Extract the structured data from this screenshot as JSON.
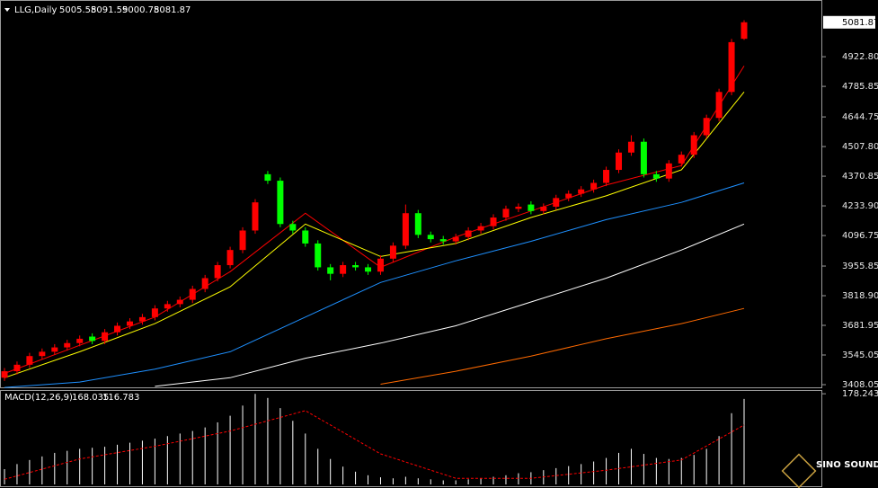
{
  "chart_data": [
    {
      "type": "candlestick",
      "title": "LLG,Daily",
      "up_color": "#ff0000",
      "down_color": "#00ff00",
      "open": [
        3440,
        3470,
        3500,
        3540,
        3560,
        3580,
        3600,
        3630,
        3610,
        3650,
        3680,
        3700,
        3720,
        3760,
        3780,
        3800,
        3850,
        3900,
        3960,
        4030,
        4120,
        4380,
        4350,
        4150,
        4120,
        4060,
        3950,
        3920,
        3960,
        3950,
        3930,
        3990,
        4050,
        4200,
        4100,
        4080,
        4070,
        4090,
        4120,
        4140,
        4180,
        4220,
        4240,
        4210,
        4230,
        4270,
        4290,
        4310,
        4340,
        4400,
        4480,
        4530,
        4380,
        4360,
        4430,
        4470,
        4560,
        4640,
        4760,
        5005.58
      ],
      "high": [
        3485,
        3515,
        3555,
        3575,
        3595,
        3615,
        3635,
        3645,
        3665,
        3695,
        3715,
        3735,
        3775,
        3795,
        3815,
        3865,
        3915,
        3975,
        4045,
        4135,
        4265,
        4395,
        4365,
        4165,
        4135,
        4075,
        3965,
        3975,
        3975,
        3965,
        4005,
        4065,
        4240,
        4215,
        4115,
        4095,
        4105,
        4135,
        4155,
        4195,
        4235,
        4245,
        4255,
        4245,
        4285,
        4305,
        4325,
        4355,
        4415,
        4495,
        4560,
        4545,
        4395,
        4445,
        4485,
        4575,
        4655,
        4775,
        5005,
        5091.59
      ],
      "low": [
        3425,
        3455,
        3485,
        3525,
        3545,
        3565,
        3585,
        3595,
        3595,
        3635,
        3665,
        3685,
        3705,
        3745,
        3765,
        3785,
        3835,
        3885,
        3945,
        4015,
        4105,
        4335,
        4135,
        4105,
        4045,
        3935,
        3890,
        3905,
        3935,
        3915,
        3915,
        3975,
        4035,
        4085,
        4065,
        4055,
        4055,
        4075,
        4105,
        4125,
        4165,
        4205,
        4195,
        4195,
        4215,
        4255,
        4275,
        4295,
        4325,
        4385,
        4465,
        4365,
        4345,
        4345,
        4415,
        4455,
        4545,
        4625,
        4745,
        5000.78
      ],
      "close": [
        3470,
        3500,
        3540,
        3560,
        3580,
        3600,
        3620,
        3610,
        3650,
        3680,
        3700,
        3720,
        3760,
        3780,
        3800,
        3850,
        3900,
        3960,
        4030,
        4120,
        4250,
        4350,
        4150,
        4120,
        4060,
        3950,
        3920,
        3960,
        3950,
        3930,
        3990,
        4050,
        4200,
        4100,
        4080,
        4070,
        4090,
        4120,
        4140,
        4180,
        4220,
        4230,
        4210,
        4230,
        4270,
        4290,
        4310,
        4340,
        4400,
        4480,
        4530,
        4380,
        4360,
        4430,
        4470,
        4560,
        4640,
        4760,
        4990,
        5081.87
      ],
      "ma_x": [
        0,
        6,
        12,
        18,
        24,
        30,
        36,
        42,
        48,
        54,
        59
      ],
      "ma_series": [
        {
          "color": "#ff0000",
          "values": [
            3460,
            3590,
            3720,
            3930,
            4200,
            3950,
            4090,
            4210,
            4330,
            4420,
            4880
          ]
        },
        {
          "color": "#ffff00",
          "values": [
            3440,
            3560,
            3690,
            3860,
            4150,
            4000,
            4060,
            4180,
            4280,
            4400,
            4760
          ]
        },
        {
          "color": "#1e90ff",
          "values": [
            3395,
            3420,
            3480,
            3560,
            3720,
            3880,
            3980,
            4070,
            4170,
            4250,
            4340
          ]
        },
        {
          "color": "#ffffff",
          "values": [
            null,
            null,
            3400,
            3440,
            3530,
            3600,
            3680,
            3790,
            3900,
            4030,
            4150
          ]
        },
        {
          "color": "#ff6a00",
          "values": [
            null,
            null,
            null,
            null,
            null,
            3410,
            3470,
            3540,
            3620,
            3690,
            3760
          ]
        }
      ],
      "ylim": [
        3391.4,
        5172.3
      ],
      "yticks": [
        3408.05,
        3545.05,
        3681.95,
        {
          "value": 3818.9,
          "label": "3818.90"
        },
        3955.85,
        4096.75,
        {
          "value": 4233.9,
          "label": "4233.90"
        },
        4370.85,
        {
          "value": 4507.8,
          "label": "4507.80"
        },
        4644.75,
        4785.85,
        {
          "value": 4922.8,
          "label": "4922.80"
        }
      ],
      "watermark": "SINO SOUND"
    },
    {
      "type": "bar",
      "title": "MACD(12,26,9)",
      "color": "#ffffff",
      "values": [
        30,
        40,
        48,
        55,
        62,
        66,
        70,
        72,
        74,
        78,
        82,
        86,
        90,
        95,
        100,
        105,
        112,
        122,
        135,
        155,
        178,
        170,
        150,
        125,
        100,
        70,
        50,
        35,
        25,
        18,
        14,
        12,
        15,
        12,
        10,
        8,
        8,
        10,
        12,
        15,
        18,
        22,
        24,
        28,
        32,
        36,
        40,
        45,
        52,
        62,
        70,
        60,
        52,
        50,
        52,
        58,
        70,
        95,
        140,
        168.035
      ],
      "signal": {
        "color": "#ff0000",
        "x": [
          0,
          6,
          12,
          18,
          24,
          30,
          36,
          42,
          48,
          54,
          59
        ],
        "values": [
          10,
          50,
          75,
          105,
          145,
          60,
          12,
          12,
          28,
          48,
          116.783
        ]
      },
      "ylim": [
        0,
        182
      ],
      "yticks": [
        178.243
      ]
    }
  ]
}
